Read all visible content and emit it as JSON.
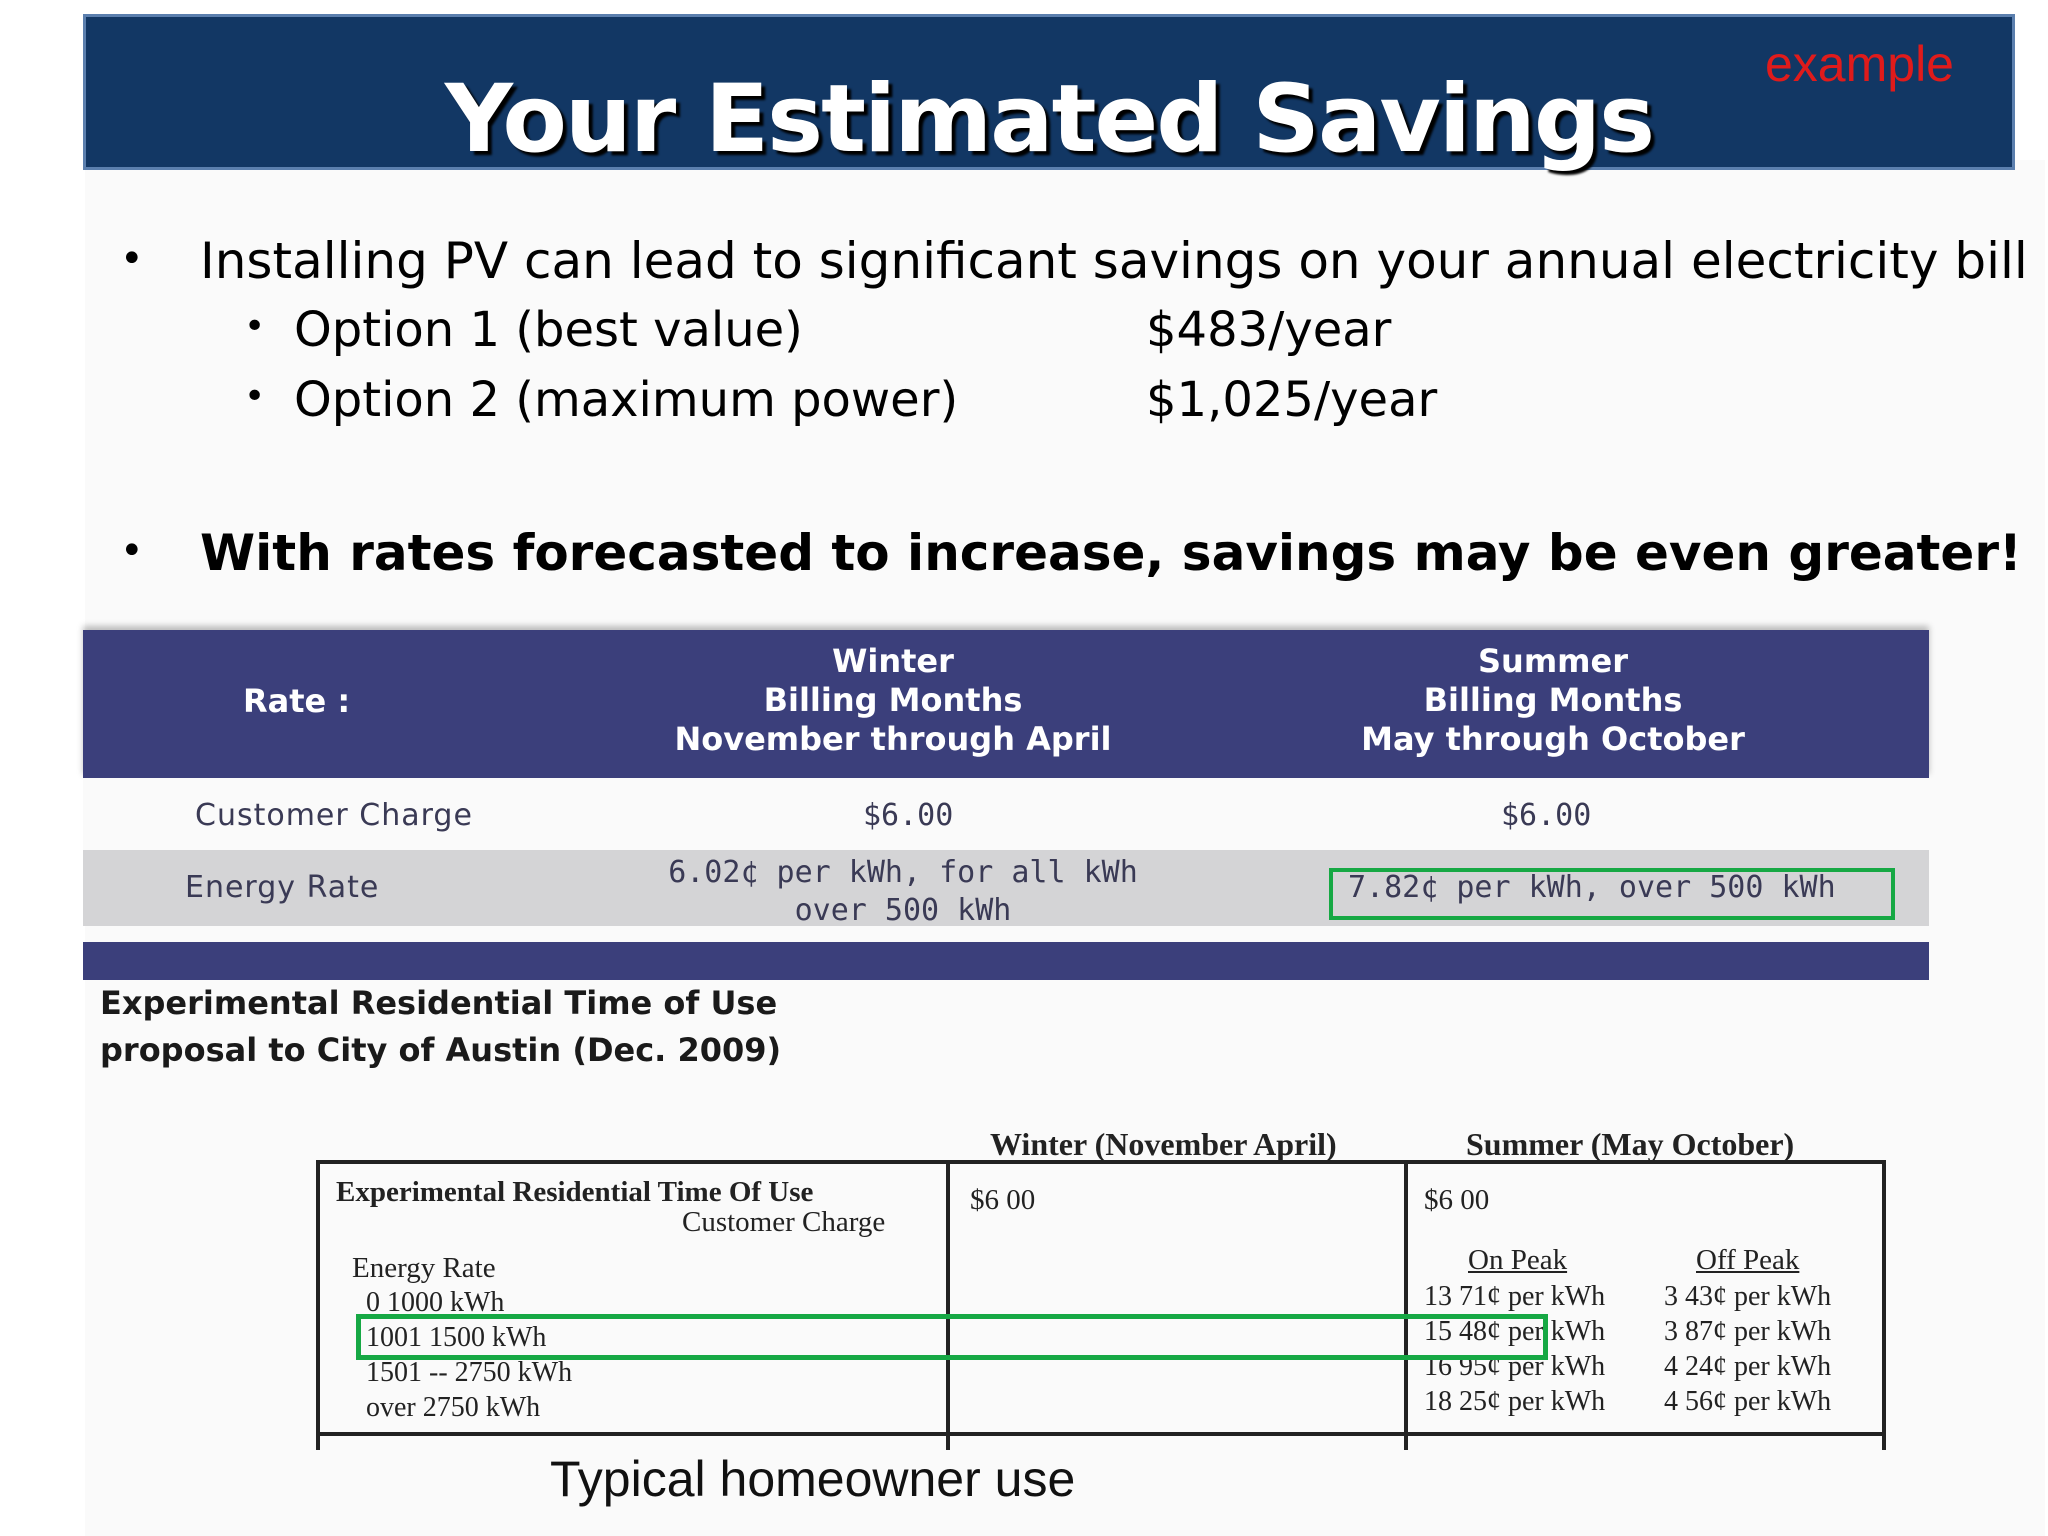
{
  "slide": {
    "title": "Your Estimated Savings",
    "tag": "example",
    "bullets": {
      "main": "Installing PV can lead to significant savings on your annual electricity bill",
      "options": [
        {
          "label": "Option 1 (best value)",
          "amount": "$483/year"
        },
        {
          "label": "Option 2 (maximum power)",
          "amount": "$1,025/year"
        }
      ],
      "emphasis": "With rates forecasted to increase, savings may be even greater!"
    }
  },
  "rate_table": {
    "header": {
      "rate": "Rate :",
      "winter": [
        "Winter",
        "Billing Months",
        "November through April"
      ],
      "summer": [
        "Summer",
        "Billing Months",
        "May through October"
      ]
    },
    "rows": [
      {
        "label": "Customer Charge",
        "winter": "$6.00",
        "summer": "$6.00"
      },
      {
        "label": "Energy Rate",
        "winter": "6.02¢ per kWh, for all kWh over 500 kWh",
        "summer": "7.82¢ per kWh, over 500 kWh"
      }
    ]
  },
  "experimental_caption": [
    "Experimental Residential Time of Use",
    "proposal to City of Austin (Dec. 2009)"
  ],
  "tou_table": {
    "header_winter": "Winter (November   April)",
    "header_summer": "Summer (May   October)",
    "title": "Experimental  Residential Time Of Use",
    "customer_charge_label": "Customer Charge",
    "energy_rate_label": "Energy Rate",
    "tiers": [
      "0   1000 kWh",
      "1001    1500 kWh",
      "1501 -- 2750 kWh",
      "over 2750 kWh"
    ],
    "winter_charge": "$6 00",
    "summer_charge": "$6 00",
    "on_peak_label": "On Peak",
    "off_peak_label": "Off Peak",
    "on_peak": [
      "13 71¢ per kWh",
      "15 48¢ per kWh",
      "16 95¢ per kWh",
      "18 25¢ per kWh"
    ],
    "off_peak": [
      "3 43¢ per kWh",
      "3 87¢ per kWh",
      "4 24¢ per kWh",
      "4 56¢ per kWh"
    ]
  },
  "caption_typical": "Typical homeowner use",
  "colors": {
    "banner": "#123764",
    "table_header": "#3b3f7b",
    "highlight": "#16a844",
    "tag": "#e01b1b"
  }
}
